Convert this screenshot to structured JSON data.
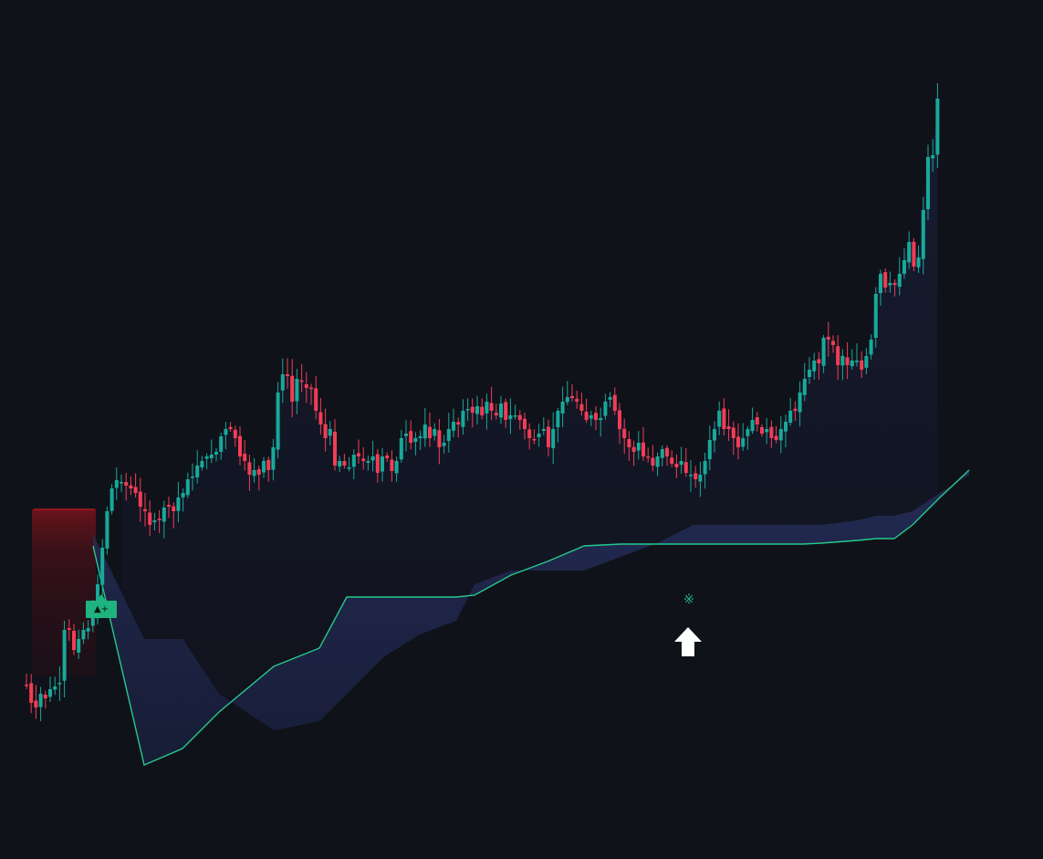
{
  "colors": {
    "background": "#10121a",
    "bull": "#18a999",
    "bear": "#f23d55",
    "trail_line": "#24c98b",
    "band_fill": "#232a55",
    "zone": "#b3141a",
    "signal_badge": "#1fb37f",
    "arrow": "#ffffff"
  },
  "signal": {
    "badge_text": "▲+",
    "marker_glyph": "※",
    "arrow_icon": "up-arrow-icon"
  },
  "chart_data": {
    "type": "candlestick",
    "title": "",
    "xlabel": "",
    "ylabel": "",
    "grid": false,
    "legend": "none",
    "ylim": [
      0,
      941
    ],
    "candle_spacing": 5.2,
    "first_close": 750,
    "closes": [
      750,
      770,
      775,
      760,
      765,
      755,
      752,
      748,
      690,
      690,
      712,
      700,
      690,
      688,
      675,
      640,
      600,
      560,
      535,
      526,
      528,
      532,
      535,
      540,
      555,
      560,
      575,
      570,
      570,
      556,
      555,
      560,
      545,
      540,
      525,
      522,
      510,
      505,
      500,
      498,
      495,
      478,
      470,
      470,
      480,
      500,
      505,
      520,
      515,
      520,
      505,
      515,
      490,
      430,
      410,
      412,
      440,
      415,
      418,
      425,
      425,
      450,
      465,
      480,
      470,
      510,
      505,
      510,
      512,
      498,
      500,
      505,
      505,
      500,
      518,
      500,
      502,
      516,
      505,
      480,
      475,
      485,
      480,
      478,
      465,
      480,
      470,
      490,
      485,
      470,
      462,
      465,
      450,
      448,
      452,
      445,
      455,
      440,
      450,
      455,
      442,
      460,
      455,
      455,
      460,
      470,
      480,
      482,
      475,
      470,
      490,
      470,
      450,
      440,
      435,
      436,
      440,
      450,
      460,
      455,
      460,
      458,
      440,
      435,
      450,
      470,
      480,
      490,
      495,
      485,
      500,
      500,
      510,
      500,
      492,
      500,
      508,
      512,
      505,
      518,
      520,
      525,
      520,
      505,
      482,
      470,
      450,
      470,
      470,
      480,
      490,
      480,
      470,
      460,
      465,
      475,
      470,
      480,
      482,
      470,
      462,
      450,
      450,
      430,
      415,
      405,
      395,
      398,
      370,
      372,
      378,
      400,
      390,
      400,
      395,
      395,
      405,
      390,
      372,
      322,
      300,
      315,
      310,
      312,
      300,
      285,
      265,
      292,
      282,
      230,
      172,
      170,
      108
    ],
    "band_top": [
      585,
      700,
      700,
      760,
      800,
      790,
      760,
      720,
      695,
      680,
      640,
      625,
      625,
      625,
      610,
      595,
      575,
      575,
      575,
      575,
      575,
      570,
      565,
      565,
      560,
      540,
      520
    ],
    "trail": [
      598,
      838,
      820,
      780,
      730,
      710,
      654,
      654,
      654,
      654,
      652,
      630,
      615,
      598,
      596,
      596,
      596,
      596,
      596,
      596,
      595,
      592,
      590,
      590,
      575,
      545,
      515
    ],
    "profile_x": [
      102,
      158,
      200,
      240,
      300,
      350,
      380,
      420,
      460,
      500,
      520,
      560,
      600,
      640,
      680,
      720,
      760,
      800,
      840,
      880,
      900,
      940,
      960,
      980,
      1000,
      1030,
      1062
    ],
    "zone": {
      "top": 558,
      "bottom": 740
    },
    "signal_price": 665,
    "marker_price": 656,
    "arrow_price": 703
  }
}
